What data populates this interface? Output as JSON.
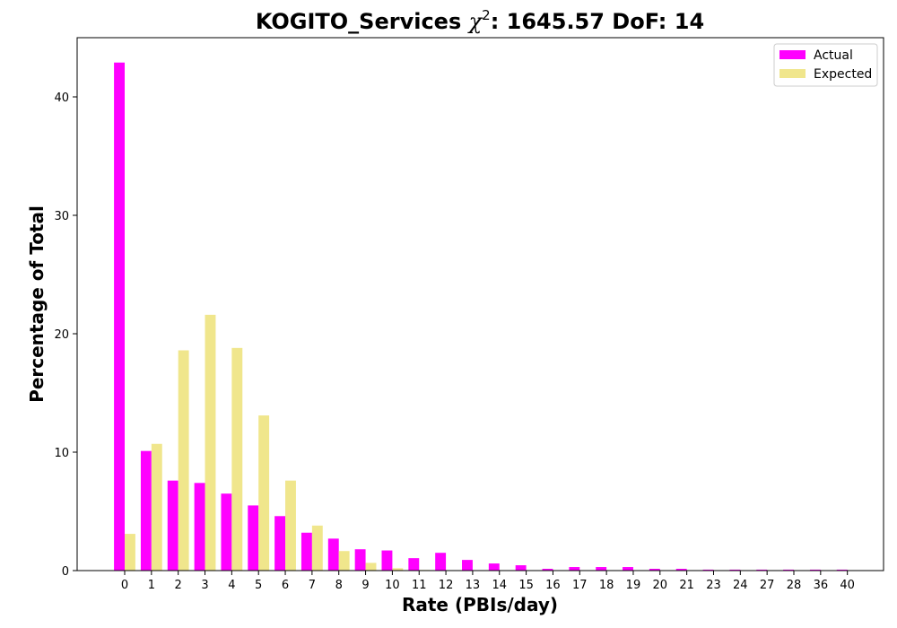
{
  "chart_data": {
    "type": "bar",
    "title_main": "KOGITO_Services ",
    "title_chi": "χ",
    "title_sup": "2",
    "title_rest": ": 1645.57 DoF: 14",
    "xlabel": "Rate (PBIs/day)",
    "ylabel": "Percentage of Total",
    "categories": [
      "0",
      "1",
      "2",
      "3",
      "4",
      "5",
      "6",
      "7",
      "8",
      "9",
      "10",
      "11",
      "12",
      "13",
      "14",
      "15",
      "16",
      "17",
      "18",
      "19",
      "20",
      "21",
      "23",
      "24",
      "27",
      "28",
      "36",
      "40"
    ],
    "series": [
      {
        "name": "Actual",
        "color": "#ff00ff",
        "values": [
          42.9,
          10.1,
          7.6,
          7.4,
          6.5,
          5.5,
          4.6,
          3.2,
          2.7,
          1.8,
          1.7,
          1.05,
          1.5,
          0.9,
          0.6,
          0.45,
          0.15,
          0.3,
          0.3,
          0.3,
          0.15,
          0.15,
          0.08,
          0.08,
          0.08,
          0.08,
          0.08,
          0.08
        ]
      },
      {
        "name": "Expected",
        "color": "#f0e68c",
        "values": [
          3.1,
          10.7,
          18.6,
          21.6,
          18.8,
          13.1,
          7.6,
          3.8,
          1.65,
          0.65,
          0.2,
          0.05,
          0.02,
          0.01,
          0,
          0,
          0,
          0,
          0,
          0,
          0,
          0,
          0,
          0,
          0,
          0,
          0,
          0
        ]
      }
    ],
    "ylim": [
      0,
      45
    ],
    "yticks": [
      0,
      10,
      20,
      30,
      40
    ],
    "grid": false,
    "legend_position": "top-right"
  }
}
